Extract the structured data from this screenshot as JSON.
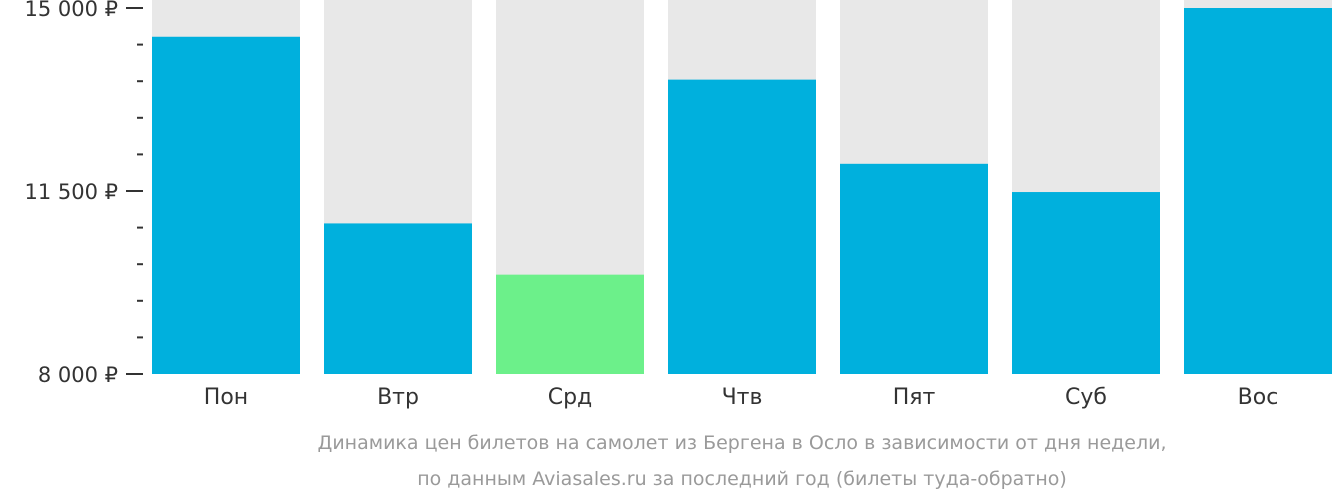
{
  "chart_data": {
    "type": "bar",
    "categories": [
      "Пон",
      "Втр",
      "Срд",
      "Чтв",
      "Пят",
      "Суб",
      "Вос"
    ],
    "values": [
      14450,
      10880,
      9900,
      13630,
      12020,
      11480,
      15000
    ],
    "ylim": [
      8000,
      15000
    ],
    "yticks": [
      {
        "value": 15000,
        "label": "15 000 ₽"
      },
      {
        "value": 11500,
        "label": "11 500 ₽"
      },
      {
        "value": 8000,
        "label": "8 000 ₽"
      }
    ],
    "minor_tick_step": 700,
    "highlight_category": "Срд",
    "colors": {
      "bar": "#00b0dd",
      "highlight": "#6cf08a",
      "track": "#e8e8e8",
      "axis": "#333333"
    },
    "caption_lines": [
      "Динамика цен билетов на самолет из Бергена в Осло в зависимости от дня недели,",
      "по данным Aviasales.ru за последний год (билеты туда-обратно)"
    ],
    "legend": "none",
    "grid": false
  }
}
